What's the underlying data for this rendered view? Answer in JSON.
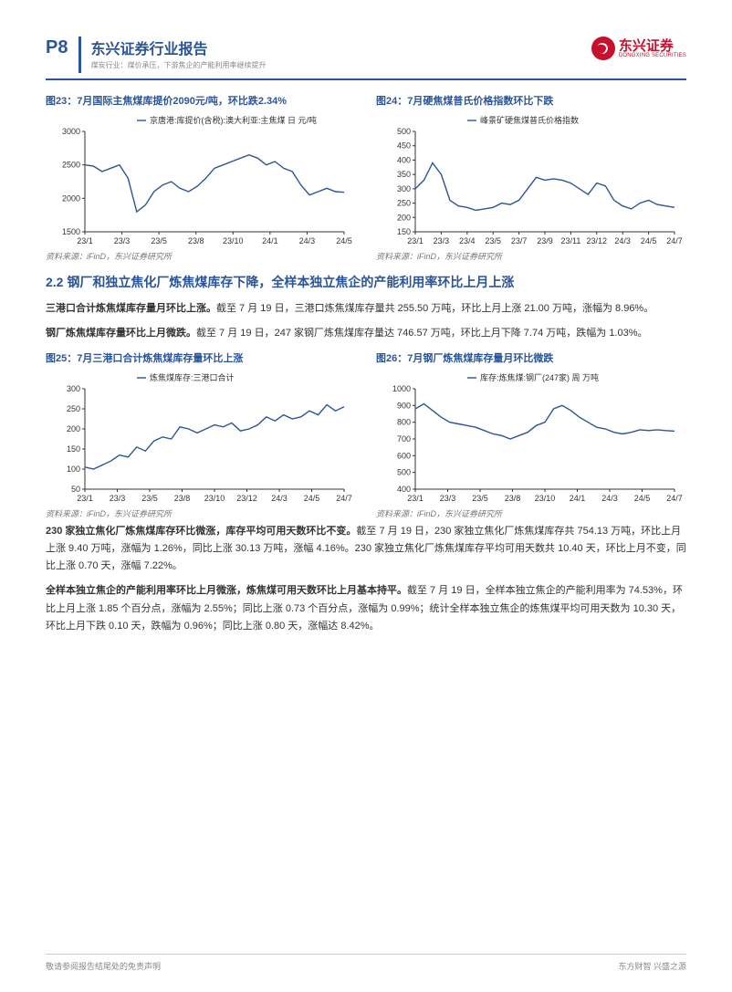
{
  "header": {
    "page_num": "P8",
    "title": "东兴证券行业报告",
    "subtitle": "煤炭行业：煤价承压，下游焦企的产能利用率继续提升",
    "logo_cn": "东兴证券",
    "logo_en": "DONGXING SECURITIES"
  },
  "chart23": {
    "title": "图23：7月国际主焦煤库提价2090元/吨，环比跌2.34%",
    "type": "line",
    "legend": "京唐港:库提价(含税):澳大利亚:主焦煤 日 元/吨",
    "series_color": "#2b5597",
    "background_color": "#ffffff",
    "xlim": [
      "23/1",
      "24/7"
    ],
    "xticks": [
      "23/1",
      "23/3",
      "23/5",
      "23/8",
      "23/10",
      "24/1",
      "24/3",
      "24/5"
    ],
    "ylim": [
      1500,
      3000
    ],
    "yticks": [
      1500,
      2000,
      2500,
      3000
    ],
    "values": [
      2500,
      2480,
      2400,
      2450,
      2500,
      2300,
      1800,
      1900,
      2100,
      2200,
      2250,
      2150,
      2100,
      2180,
      2300,
      2450,
      2500,
      2550,
      2600,
      2650,
      2600,
      2500,
      2550,
      2450,
      2400,
      2200,
      2050,
      2100,
      2150,
      2100,
      2090
    ],
    "source": "资料来源：iFinD，东兴证券研究所"
  },
  "chart24": {
    "title": "图24：7月硬焦煤普氏价格指数环比下跌",
    "type": "line",
    "legend": "峰景矿硬焦煤普氏价格指数",
    "series_color": "#2b5597",
    "background_color": "#ffffff",
    "xlim": [
      "23/1",
      "24/7"
    ],
    "xticks": [
      "23/1",
      "23/3",
      "23/4",
      "23/5",
      "23/7",
      "23/9",
      "23/11",
      "23/12",
      "24/3",
      "24/5",
      "24/7"
    ],
    "ylim": [
      150,
      500
    ],
    "yticks": [
      150,
      200,
      250,
      300,
      350,
      400,
      450,
      500
    ],
    "values": [
      300,
      330,
      390,
      350,
      260,
      240,
      235,
      225,
      230,
      235,
      250,
      245,
      260,
      300,
      340,
      330,
      335,
      330,
      320,
      300,
      280,
      320,
      310,
      260,
      240,
      230,
      250,
      260,
      245,
      240,
      235
    ],
    "source": "资料来源：iFinD，东兴证券研究所"
  },
  "section22": {
    "title": "2.2 钢厂和独立焦化厂炼焦煤库存下降，全样本独立焦企的产能利用率环比上月上涨",
    "p1_bold": "三港口合计炼焦煤库存量月环比上涨。",
    "p1": "截至 7 月 19 日，三港口炼焦煤库存量共 255.50 万吨，环比上月上涨 21.00 万吨，涨幅为 8.96%。",
    "p2_bold": "钢厂炼焦煤库存量环比上月微跌。",
    "p2": "截至 7 月 19 日，247 家钢厂炼焦煤库存量达 746.57 万吨，环比上月下降 7.74 万吨，跌幅为 1.03%。"
  },
  "chart25": {
    "title": "图25：7月三港口合计炼焦煤库存量环比上涨",
    "type": "line",
    "legend": "炼焦煤库存:三港口合计",
    "series_color": "#2b5597",
    "background_color": "#ffffff",
    "xlim": [
      "23/1",
      "24/7"
    ],
    "xticks": [
      "23/1",
      "23/3",
      "23/5",
      "23/8",
      "23/10",
      "23/12",
      "24/3",
      "24/5",
      "24/7"
    ],
    "ylim": [
      50,
      300
    ],
    "yticks": [
      50,
      100,
      150,
      200,
      250,
      300
    ],
    "values": [
      105,
      100,
      110,
      120,
      135,
      130,
      155,
      145,
      170,
      180,
      175,
      205,
      200,
      190,
      200,
      210,
      205,
      215,
      195,
      200,
      210,
      230,
      220,
      235,
      225,
      230,
      245,
      235,
      260,
      245,
      255
    ],
    "source": "资料来源：iFinD，东兴证券研究所"
  },
  "chart26": {
    "title": "图26：7月钢厂炼焦煤库存量月环比微跌",
    "type": "line",
    "legend": "库存:炼焦煤:钢厂(247家) 周 万吨",
    "series_color": "#2b5597",
    "background_color": "#ffffff",
    "xlim": [
      "23/1",
      "24/7"
    ],
    "xticks": [
      "23/1",
      "23/3",
      "23/5",
      "23/8",
      "23/10",
      "24/1",
      "24/3",
      "24/5",
      "24/7"
    ],
    "ylim": [
      400,
      1000
    ],
    "yticks": [
      400,
      500,
      600,
      700,
      800,
      900,
      1000
    ],
    "values": [
      880,
      910,
      870,
      830,
      800,
      790,
      780,
      770,
      750,
      730,
      720,
      700,
      720,
      740,
      780,
      800,
      880,
      900,
      870,
      830,
      800,
      770,
      760,
      740,
      730,
      740,
      755,
      750,
      755,
      750,
      747
    ],
    "source": "资料来源：iFinD，东兴证券研究所"
  },
  "para3": {
    "bold": "230 家独立焦化厂炼焦煤库存环比微涨，库存平均可用天数环比不变。",
    "text": "截至 7 月 19 日，230 家独立焦化厂炼焦煤库存共 754.13 万吨，环比上月上涨 9.40 万吨，涨幅为 1.26%，同比上涨 30.13 万吨，涨幅 4.16%。230 家独立焦化厂炼焦煤库存平均可用天数共 10.40 天，环比上月不变，同比上涨 0.70 天，涨幅 7.22%。"
  },
  "para4": {
    "bold": "全样本独立焦企的产能利用率环比上月微涨，炼焦煤可用天数环比上月基本持平。",
    "text": "截至 7 月 19 日，全样本独立焦企的产能利用率为 74.53%，环比上月上涨 1.85 个百分点，涨幅为 2.55%；同比上涨 0.73 个百分点，涨幅为 0.99%；统计全样本独立焦企的炼焦煤平均可用天数为 10.30 天，环比上月下跌 0.10 天，跌幅为 0.96%；同比上涨 0.80 天，涨幅达 8.42%。"
  },
  "footer": {
    "left": "敬请参阅报告结尾处的免责声明",
    "right": "东方财智 兴盛之源"
  }
}
